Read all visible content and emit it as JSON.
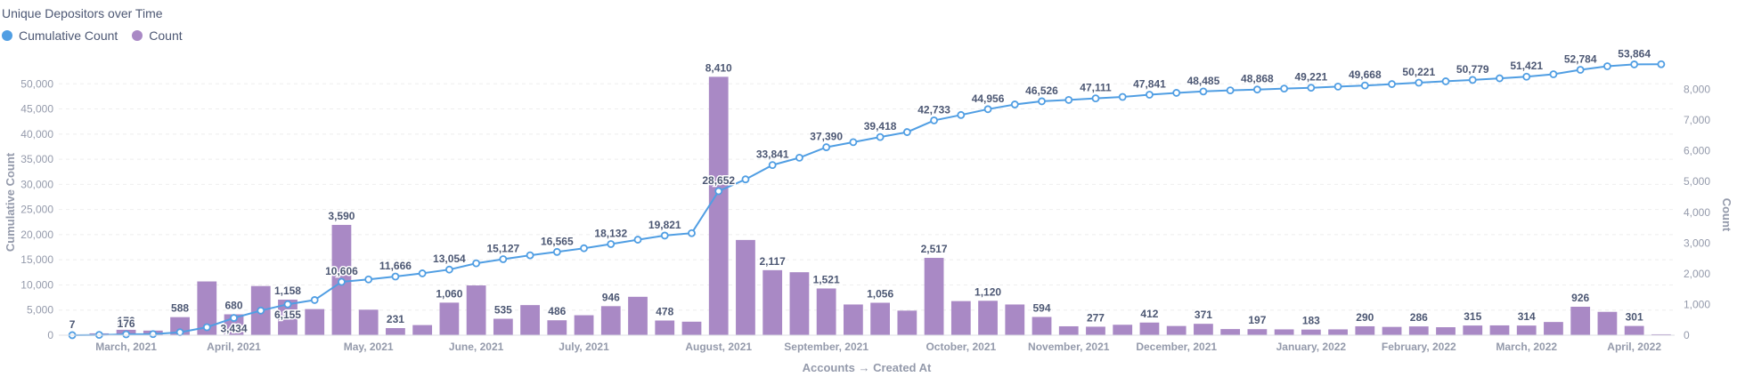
{
  "chart_data": {
    "type": "bar",
    "title": "Unique Depositors over Time",
    "xlabel": "Accounts → Created At",
    "ylabel_left": "Cumulative Count",
    "ylabel_right": "Count",
    "left_ylim": [
      0,
      55000
    ],
    "right_ylim": [
      0,
      9000
    ],
    "left_ticks": [
      "0",
      "5,000",
      "10,000",
      "15,000",
      "20,000",
      "25,000",
      "30,000",
      "35,000",
      "40,000",
      "45,000",
      "50,000"
    ],
    "right_ticks": [
      "0",
      "1,000",
      "2,000",
      "3,000",
      "4,000",
      "5,000",
      "6,000",
      "7,000",
      "8,000"
    ],
    "month_labels": [
      {
        "label": "March, 2021",
        "index": 2
      },
      {
        "label": "April, 2021",
        "index": 6
      },
      {
        "label": "May, 2021",
        "index": 11
      },
      {
        "label": "June, 2021",
        "index": 15
      },
      {
        "label": "July, 2021",
        "index": 19
      },
      {
        "label": "August, 2021",
        "index": 24
      },
      {
        "label": "September, 2021",
        "index": 28
      },
      {
        "label": "October, 2021",
        "index": 33
      },
      {
        "label": "November, 2021",
        "index": 37
      },
      {
        "label": "December, 2021",
        "index": 41
      },
      {
        "label": "January, 2022",
        "index": 46
      },
      {
        "label": "February, 2022",
        "index": 50
      },
      {
        "label": "March, 2022",
        "index": 54
      },
      {
        "label": "April, 2022",
        "index": 58
      }
    ],
    "legend_position": "top-left",
    "series": [
      {
        "name": "Cumulative Count",
        "type": "line",
        "axis": "left",
        "color": "#509ee3",
        "values": [
          7,
          60,
          176,
          220,
          588,
          1590,
          3434,
          4900,
          6155,
          7000,
          10606,
          11100,
          11666,
          12300,
          13054,
          14300,
          15127,
          15900,
          16565,
          17300,
          18132,
          19000,
          19821,
          20300,
          28652,
          31000,
          33841,
          35300,
          37390,
          38400,
          39418,
          40400,
          42733,
          43800,
          44956,
          45900,
          46526,
          46800,
          47111,
          47400,
          47841,
          48200,
          48485,
          48700,
          48868,
          49050,
          49221,
          49450,
          49668,
          49950,
          50221,
          50500,
          50779,
          51100,
          51421,
          51900,
          52784,
          53500,
          53864,
          53900
        ],
        "labels": [
          {
            "index": 0,
            "text": "7",
            "pos": "above"
          },
          {
            "index": 2,
            "text": "176",
            "pos": "above"
          },
          {
            "index": 6,
            "text": "3,434",
            "pos": "below"
          },
          {
            "index": 8,
            "text": "6,155",
            "pos": "below"
          },
          {
            "index": 10,
            "text": "10,606",
            "pos": "above"
          },
          {
            "index": 12,
            "text": "11,666",
            "pos": "above"
          },
          {
            "index": 14,
            "text": "13,054",
            "pos": "above"
          },
          {
            "index": 16,
            "text": "15,127",
            "pos": "above"
          },
          {
            "index": 18,
            "text": "16,565",
            "pos": "above"
          },
          {
            "index": 20,
            "text": "18,132",
            "pos": "above"
          },
          {
            "index": 22,
            "text": "19,821",
            "pos": "above"
          },
          {
            "index": 24,
            "text": "28,652",
            "pos": "above"
          },
          {
            "index": 26,
            "text": "33,841",
            "pos": "above"
          },
          {
            "index": 28,
            "text": "37,390",
            "pos": "above"
          },
          {
            "index": 30,
            "text": "39,418",
            "pos": "above"
          },
          {
            "index": 32,
            "text": "42,733",
            "pos": "above"
          },
          {
            "index": 34,
            "text": "44,956",
            "pos": "above"
          },
          {
            "index": 36,
            "text": "46,526",
            "pos": "above"
          },
          {
            "index": 38,
            "text": "47,111",
            "pos": "above"
          },
          {
            "index": 40,
            "text": "47,841",
            "pos": "above"
          },
          {
            "index": 42,
            "text": "48,485",
            "pos": "above"
          },
          {
            "index": 44,
            "text": "48,868",
            "pos": "above"
          },
          {
            "index": 46,
            "text": "49,221",
            "pos": "above"
          },
          {
            "index": 48,
            "text": "49,668",
            "pos": "above"
          },
          {
            "index": 50,
            "text": "50,221",
            "pos": "above"
          },
          {
            "index": 52,
            "text": "50,779",
            "pos": "above"
          },
          {
            "index": 54,
            "text": "51,421",
            "pos": "above"
          },
          {
            "index": 56,
            "text": "52,784",
            "pos": "above"
          },
          {
            "index": 58,
            "text": "53,864",
            "pos": "above"
          }
        ]
      },
      {
        "name": "Count",
        "type": "bar",
        "axis": "right",
        "color": "#a989c5",
        "values": [
          7,
          60,
          176,
          150,
          588,
          1750,
          680,
          1600,
          1158,
          850,
          3590,
          830,
          231,
          330,
          1060,
          1620,
          535,
          980,
          486,
          650,
          946,
          1250,
          478,
          440,
          8410,
          3100,
          2117,
          2050,
          1521,
          1000,
          1056,
          800,
          2517,
          1110,
          1120,
          1000,
          594,
          290,
          277,
          340,
          412,
          300,
          371,
          200,
          197,
          190,
          183,
          190,
          290,
          270,
          286,
          260,
          315,
          320,
          314,
          430,
          926,
          760,
          301,
          30
        ],
        "labels": [
          {
            "index": 2,
            "text": "176"
          },
          {
            "index": 4,
            "text": "588"
          },
          {
            "index": 6,
            "text": "680"
          },
          {
            "index": 8,
            "text": "1,158"
          },
          {
            "index": 10,
            "text": "3,590"
          },
          {
            "index": 12,
            "text": "231"
          },
          {
            "index": 14,
            "text": "1,060"
          },
          {
            "index": 16,
            "text": "535"
          },
          {
            "index": 18,
            "text": "486"
          },
          {
            "index": 20,
            "text": "946"
          },
          {
            "index": 22,
            "text": "478"
          },
          {
            "index": 24,
            "text": "8,410"
          },
          {
            "index": 26,
            "text": "2,117"
          },
          {
            "index": 28,
            "text": "1,521"
          },
          {
            "index": 30,
            "text": "1,056"
          },
          {
            "index": 32,
            "text": "2,517"
          },
          {
            "index": 34,
            "text": "1,120"
          },
          {
            "index": 36,
            "text": "594"
          },
          {
            "index": 38,
            "text": "277"
          },
          {
            "index": 40,
            "text": "412"
          },
          {
            "index": 42,
            "text": "371"
          },
          {
            "index": 44,
            "text": "197"
          },
          {
            "index": 46,
            "text": "183"
          },
          {
            "index": 48,
            "text": "290"
          },
          {
            "index": 50,
            "text": "286"
          },
          {
            "index": 52,
            "text": "315"
          },
          {
            "index": 54,
            "text": "314"
          },
          {
            "index": 56,
            "text": "926"
          },
          {
            "index": 58,
            "text": "301"
          }
        ]
      }
    ]
  }
}
